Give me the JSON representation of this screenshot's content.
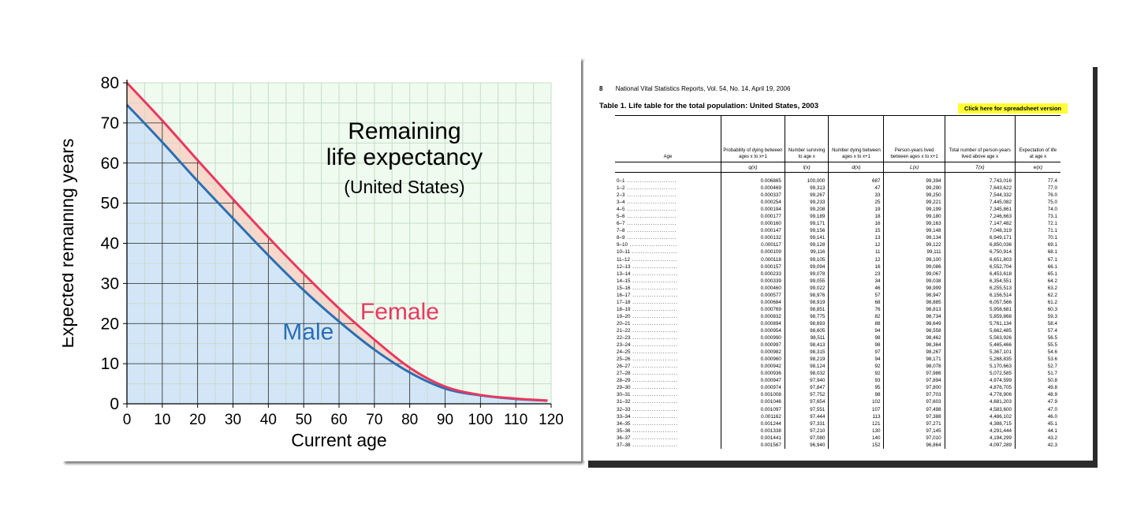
{
  "chart_data": {
    "type": "area",
    "title": "Remaining\nlife expectancy",
    "title_lines": [
      "Remaining",
      "life expectancy"
    ],
    "subtitle": "(United States)",
    "xlabel": "Current age",
    "ylabel": "Expected remaining years",
    "xlim": [
      0,
      120
    ],
    "ylim": [
      0,
      80
    ],
    "x_ticks": [
      0,
      10,
      20,
      30,
      40,
      50,
      60,
      70,
      80,
      90,
      100,
      110,
      120
    ],
    "y_ticks": [
      0,
      10,
      20,
      30,
      40,
      50,
      60,
      70,
      80
    ],
    "grid": true,
    "x": [
      0,
      10,
      20,
      30,
      40,
      50,
      60,
      70,
      80,
      90,
      100,
      110,
      119
    ],
    "series": [
      {
        "name": "Female",
        "color": "#e8385f",
        "fill": "#f8d8cb",
        "label_pos": [
          66,
          21
        ],
        "values": [
          80,
          70.6,
          60.7,
          51,
          41.5,
          32.4,
          23.8,
          16,
          9,
          4.3,
          2.2,
          1.3,
          0.8
        ]
      },
      {
        "name": "Male",
        "color": "#2a6fb5",
        "fill": "#d3e6f8",
        "label_pos": [
          44,
          16
        ],
        "values": [
          74.5,
          65.2,
          55.5,
          46.2,
          37,
          28.3,
          20.5,
          13.5,
          7.8,
          3.8,
          2.1,
          1.2,
          0.8
        ]
      }
    ],
    "colors": {
      "plot_bg": "#eefbee",
      "grid": "#c8dcc8",
      "axis": "#000000",
      "major_grid": "#2a2a2a"
    }
  },
  "document": {
    "page_number": "8",
    "header": "National Vital Statistics Reports, Vol. 54, No. 14, April 19, 2006",
    "title": "Table 1. Life table for the total population: United States, 2003",
    "spreadsheet_link": "Click here for spreadsheet version",
    "columns": [
      {
        "header": "Age",
        "symbol": ""
      },
      {
        "header": "Probability of dying between ages x to x+1",
        "symbol": "q(x)"
      },
      {
        "header": "Number surviving to age x",
        "symbol": "l(x)"
      },
      {
        "header": "Number dying between ages x to x+1",
        "symbol": "d(x)"
      },
      {
        "header": "Person-years lived between ages x to x+1",
        "symbol": "L(x)"
      },
      {
        "header": "Total number of person-years lived above age x",
        "symbol": "T(x)"
      },
      {
        "header": "Expectation of life at age x",
        "symbol": "e(x)"
      }
    ],
    "rows": [
      [
        "0–1",
        "0.006865",
        "100,000",
        "687",
        "99,394",
        "7,743,016",
        "77.4"
      ],
      [
        "1–2",
        "0.000469",
        "99,313",
        "47",
        "99,290",
        "7,643,622",
        "77.0"
      ],
      [
        "2–3",
        "0.000337",
        "99,267",
        "33",
        "99,250",
        "7,544,332",
        "76.0"
      ],
      [
        "3–4",
        "0.000254",
        "99,233",
        "25",
        "99,221",
        "7,445,082",
        "75.0"
      ],
      [
        "4–5",
        "0.000194",
        "99,208",
        "19",
        "99,199",
        "7,345,861",
        "74.0"
      ],
      [
        "5–6",
        "0.000177",
        "99,189",
        "18",
        "99,180",
        "7,246,663",
        "73.1"
      ],
      [
        "6–7",
        "0.000160",
        "99,171",
        "16",
        "99,163",
        "7,147,482",
        "72.1"
      ],
      [
        "7–8",
        "0.000147",
        "99,156",
        "15",
        "99,148",
        "7,048,319",
        "71.1"
      ],
      [
        "8–9",
        "0.000132",
        "99,141",
        "13",
        "99,134",
        "6,949,171",
        "70.1"
      ],
      [
        "9–10",
        "0.000117",
        "99,128",
        "12",
        "99,122",
        "6,850,036",
        "69.1"
      ],
      [
        "10–11",
        "0.000109",
        "99,116",
        "11",
        "99,111",
        "6,750,914",
        "68.1"
      ],
      [
        "11–12",
        "0.000118",
        "99,105",
        "12",
        "99,100",
        "6,651,803",
        "67.1"
      ],
      [
        "12–13",
        "0.000157",
        "99,094",
        "16",
        "99,086",
        "6,552,704",
        "66.1"
      ],
      [
        "13–14",
        "0.000233",
        "99,078",
        "23",
        "99,067",
        "6,453,618",
        "65.1"
      ],
      [
        "14–15",
        "0.000339",
        "99,055",
        "34",
        "99,038",
        "6,354,551",
        "64.2"
      ],
      [
        "15–16",
        "0.000460",
        "99,022",
        "46",
        "98,999",
        "6,255,513",
        "63.2"
      ],
      [
        "16–17",
        "0.000577",
        "98,976",
        "57",
        "98,947",
        "6,156,514",
        "62.2"
      ],
      [
        "17–18",
        "0.000684",
        "98,919",
        "68",
        "98,885",
        "6,057,566",
        "61.2"
      ],
      [
        "18–19",
        "0.000769",
        "98,851",
        "76",
        "98,813",
        "5,958,681",
        "60.3"
      ],
      [
        "19–20",
        "0.000832",
        "98,775",
        "82",
        "98,734",
        "5,859,868",
        "59.3"
      ],
      [
        "20–21",
        "0.000894",
        "98,693",
        "88",
        "98,649",
        "5,761,134",
        "58.4"
      ],
      [
        "21–22",
        "0.000954",
        "98,605",
        "94",
        "98,558",
        "5,662,485",
        "57.4"
      ],
      [
        "22–23",
        "0.000990",
        "98,511",
        "98",
        "98,462",
        "5,563,926",
        "56.5"
      ],
      [
        "23–24",
        "0.000997",
        "98,413",
        "98",
        "98,364",
        "5,465,466",
        "55.5"
      ],
      [
        "24–25",
        "0.000982",
        "98,315",
        "97",
        "98,267",
        "5,367,101",
        "54.6"
      ],
      [
        "25–26",
        "0.000960",
        "98,219",
        "94",
        "98,171",
        "5,268,835",
        "53.6"
      ],
      [
        "26–27",
        "0.000942",
        "98,124",
        "92",
        "98,078",
        "5,170,663",
        "52.7"
      ],
      [
        "27–28",
        "0.000936",
        "98,032",
        "92",
        "97,986",
        "5,072,585",
        "51.7"
      ],
      [
        "28–29",
        "0.000947",
        "97,940",
        "93",
        "97,894",
        "4,974,599",
        "50.8"
      ],
      [
        "29–30",
        "0.000974",
        "97,847",
        "95",
        "97,800",
        "4,876,705",
        "49.8"
      ],
      [
        "30–31",
        "0.001008",
        "97,752",
        "98",
        "97,703",
        "4,778,906",
        "48.9"
      ],
      [
        "31–32",
        "0.001046",
        "97,654",
        "102",
        "97,603",
        "4,681,203",
        "47.9"
      ],
      [
        "32–33",
        "0.001097",
        "97,551",
        "107",
        "97,498",
        "4,583,600",
        "47.0"
      ],
      [
        "33–34",
        "0.001162",
        "97,444",
        "113",
        "97,388",
        "4,486,102",
        "46.0"
      ],
      [
        "34–35",
        "0.001244",
        "97,331",
        "121",
        "97,271",
        "4,388,715",
        "45.1"
      ],
      [
        "35–36",
        "0.001338",
        "97,210",
        "130",
        "97,145",
        "4,291,444",
        "44.1"
      ],
      [
        "36–37",
        "0.001441",
        "97,080",
        "140",
        "97,010",
        "4,194,299",
        "43.2"
      ],
      [
        "37–38",
        "0.001567",
        "96,940",
        "152",
        "96,864",
        "4,097,289",
        "42.3"
      ]
    ]
  }
}
